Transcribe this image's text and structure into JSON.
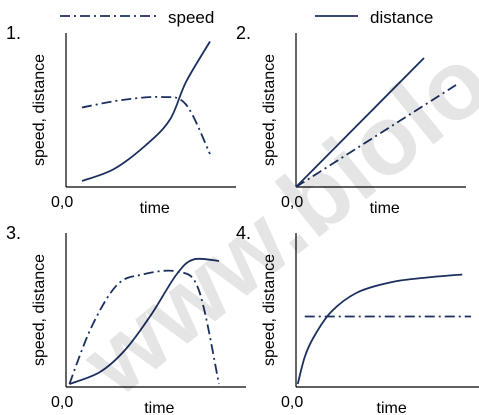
{
  "legend": {
    "speed_label": "speed",
    "distance_label": "distance",
    "placement": "top"
  },
  "watermark": "www.biolo",
  "colors": {
    "line": "#1b2f5e",
    "axis": "#000000",
    "watermark": "#000000"
  },
  "chart_data": [
    {
      "type": "line",
      "panel_label": "1.",
      "xlabel": "time",
      "ylabel": "speed, distance",
      "origin_label": "0,0",
      "xlim": [
        0,
        1
      ],
      "ylim": [
        0,
        1
      ],
      "series": [
        {
          "name": "speed",
          "style": "dash-dot",
          "x": [
            0.1,
            0.35,
            0.6,
            0.75,
            0.9
          ],
          "y": [
            0.53,
            0.58,
            0.6,
            0.55,
            0.22
          ]
        },
        {
          "name": "distance",
          "style": "solid",
          "x": [
            0.1,
            0.3,
            0.5,
            0.65,
            0.75,
            0.9
          ],
          "y": [
            0.04,
            0.12,
            0.28,
            0.45,
            0.7,
            0.97
          ]
        }
      ]
    },
    {
      "type": "line",
      "panel_label": "2.",
      "xlabel": "time",
      "ylabel": "speed, distance",
      "origin_label": "0,0",
      "xlim": [
        0,
        1
      ],
      "ylim": [
        0,
        1
      ],
      "series": [
        {
          "name": "speed",
          "style": "dash-dot",
          "x": [
            0,
            1
          ],
          "y": [
            0,
            0.68
          ]
        },
        {
          "name": "distance",
          "style": "solid",
          "x": [
            0,
            0.8
          ],
          "y": [
            0,
            0.86
          ]
        }
      ]
    },
    {
      "type": "line",
      "panel_label": "3.",
      "xlabel": "time",
      "ylabel": "speed, distance",
      "origin_label": "0,0",
      "xlim": [
        0,
        1
      ],
      "ylim": [
        0,
        1
      ],
      "series": [
        {
          "name": "speed",
          "style": "dash-dot",
          "x": [
            0.02,
            0.15,
            0.3,
            0.45,
            0.65,
            0.78,
            0.9
          ],
          "y": [
            0.02,
            0.4,
            0.68,
            0.75,
            0.77,
            0.65,
            0.02
          ]
        },
        {
          "name": "distance",
          "style": "solid",
          "x": [
            0.02,
            0.2,
            0.35,
            0.5,
            0.65,
            0.75,
            0.9
          ],
          "y": [
            0.02,
            0.1,
            0.25,
            0.48,
            0.75,
            0.85,
            0.84
          ]
        }
      ]
    },
    {
      "type": "line",
      "panel_label": "4.",
      "xlabel": "time",
      "ylabel": "speed, distance",
      "origin_label": "0,0",
      "xlim": [
        0,
        1
      ],
      "ylim": [
        0,
        1
      ],
      "series": [
        {
          "name": "speed",
          "style": "dash-dot",
          "x": [
            0.05,
            1
          ],
          "y": [
            0.47,
            0.47
          ]
        },
        {
          "name": "distance",
          "style": "solid",
          "x": [
            0.01,
            0.05,
            0.1,
            0.2,
            0.35,
            0.55,
            0.75,
            0.95
          ],
          "y": [
            0.02,
            0.2,
            0.33,
            0.5,
            0.63,
            0.7,
            0.73,
            0.75
          ]
        }
      ]
    }
  ]
}
